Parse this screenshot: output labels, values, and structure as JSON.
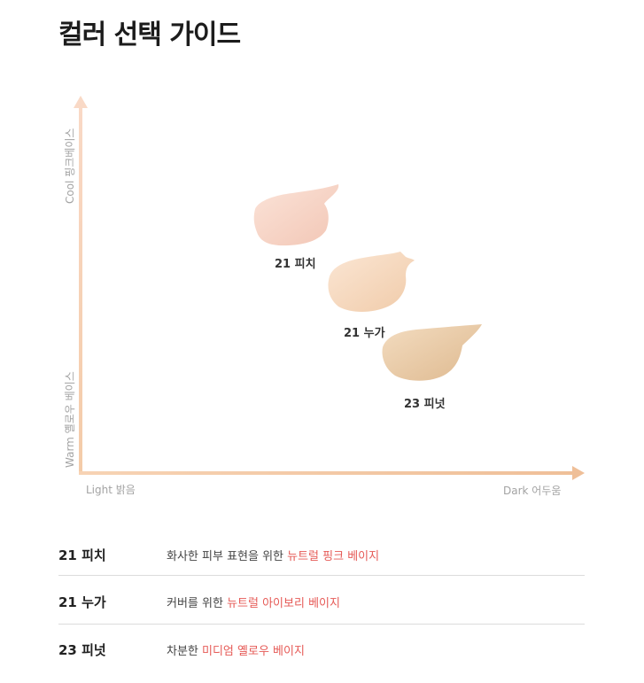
{
  "title": "컬러 선택 가이드",
  "axes": {
    "y_top": "Cool 핑크베이스",
    "y_bottom": "Warm 옐로우 베이스",
    "x_left": "Light 밝음",
    "x_right": "Dark 어두움"
  },
  "swatches": [
    {
      "label": "21 피치",
      "color": "#f7d5c6"
    },
    {
      "label": "21 누가",
      "color": "#f6d8bf"
    },
    {
      "label": "23 피넛",
      "color": "#e9caa5"
    }
  ],
  "colors": {
    "axis": "#f5ccb0",
    "highlight": "#e65a56",
    "divider": "#dcdcdc"
  },
  "rows": [
    {
      "name": "21 피치",
      "desc_plain": "화사한 피부 표현을 위한 ",
      "desc_highlight": "뉴트럴 핑크 베이지"
    },
    {
      "name": "21 누가",
      "desc_plain": "커버를 위한 ",
      "desc_highlight": "뉴트럴 아이보리 베이지"
    },
    {
      "name": "23 피넛",
      "desc_plain": "차분한 ",
      "desc_highlight": "미디엄 옐로우 베이지"
    }
  ]
}
